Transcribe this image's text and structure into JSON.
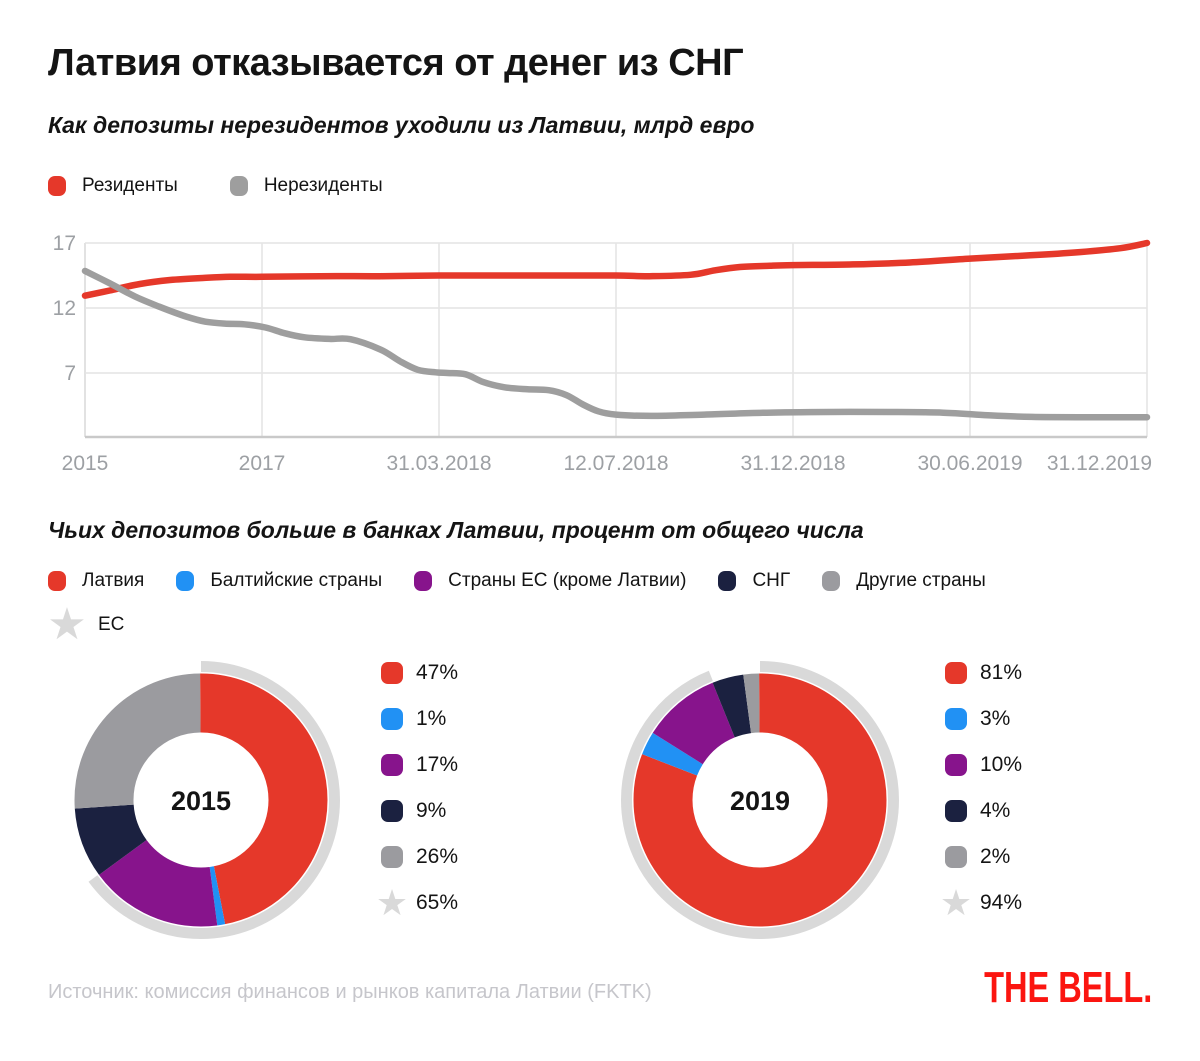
{
  "header": {
    "title": "Латвия отказывается от денег из СНГ",
    "subtitle": "Как депозиты нерезидентов уходили из Латвии, млрд евро"
  },
  "section2": {
    "title": "Чьих депозитов больше в банках Латвии, процент от общего числа",
    "eu_legend_label": "ЕС"
  },
  "footer": {
    "source": "Источник: комиссия финансов и рынков капитала Латвии (FKTK)",
    "logo": "THE BELL."
  },
  "icons": {
    "eu_star": "★"
  },
  "colors": {
    "red": "#e5382a",
    "blue": "#2191f4",
    "purple": "#87148c",
    "navy": "#1b2140",
    "gray": "#9b9b9f",
    "line_gray": "#9e9e9e",
    "eu_light_gray": "#d9d9d9",
    "grid": "#e4e4e4",
    "axis_left": "#d8d8d8",
    "axis_bottom": "#c9c9c9",
    "tick_text": "#9da0a4",
    "source_text": "#c6c6cb",
    "logo_red": "#fb1510",
    "text": "#141414"
  },
  "chart_data": [
    {
      "type": "line",
      "title": "Как депозиты нерезидентов уходили из Латвии, млрд евро",
      "xlabel": "",
      "ylabel": "млрд евро",
      "ylim": [
        2,
        17
      ],
      "yticks": [
        17,
        12,
        7
      ],
      "xticks": [
        "2015",
        "2017",
        "31.03.2018",
        "12.07.2018",
        "31.12.2018",
        "30.06.2019",
        "31.12.2019"
      ],
      "grid": true,
      "legend_position": "top",
      "series": [
        {
          "name": "Резиденты",
          "color": "#e5382a",
          "points": [
            [
              0,
              12.95
            ],
            [
              0.14,
              13.35
            ],
            [
              0.31,
              13.85
            ],
            [
              0.48,
              14.15
            ],
            [
              0.65,
              14.3
            ],
            [
              0.82,
              14.4
            ],
            [
              1,
              14.4
            ],
            [
              1.33,
              14.45
            ],
            [
              1.67,
              14.45
            ],
            [
              2,
              14.5
            ],
            [
              2.35,
              14.5
            ],
            [
              2.68,
              14.5
            ],
            [
              3,
              14.5
            ],
            [
              3.19,
              14.45
            ],
            [
              3.42,
              14.55
            ],
            [
              3.56,
              14.9
            ],
            [
              3.7,
              15.15
            ],
            [
              3.87,
              15.25
            ],
            [
              4,
              15.3
            ],
            [
              4.32,
              15.35
            ],
            [
              4.66,
              15.5
            ],
            [
              5,
              15.8
            ],
            [
              5.34,
              16.05
            ],
            [
              5.62,
              16.3
            ],
            [
              5.85,
              16.6
            ],
            [
              6,
              17
            ]
          ]
        },
        {
          "name": "Нерезиденты",
          "color": "#9e9e9e",
          "points": [
            [
              0,
              14.85
            ],
            [
              0.14,
              13.9
            ],
            [
              0.28,
              12.9
            ],
            [
              0.42,
              12.1
            ],
            [
              0.57,
              11.35
            ],
            [
              0.68,
              10.95
            ],
            [
              0.79,
              10.8
            ],
            [
              0.9,
              10.75
            ],
            [
              1.02,
              10.5
            ],
            [
              1.13,
              10.05
            ],
            [
              1.24,
              9.75
            ],
            [
              1.38,
              9.62
            ],
            [
              1.5,
              9.6
            ],
            [
              1.67,
              8.8
            ],
            [
              1.78,
              7.9
            ],
            [
              1.88,
              7.25
            ],
            [
              1.98,
              7.05
            ],
            [
              2.05,
              7.0
            ],
            [
              2.15,
              6.9
            ],
            [
              2.25,
              6.3
            ],
            [
              2.37,
              5.9
            ],
            [
              2.5,
              5.75
            ],
            [
              2.62,
              5.68
            ],
            [
              2.72,
              5.3
            ],
            [
              2.81,
              4.6
            ],
            [
              2.9,
              4.05
            ],
            [
              3,
              3.8
            ],
            [
              3.2,
              3.7
            ],
            [
              3.5,
              3.8
            ],
            [
              3.85,
              3.95
            ],
            [
              4.2,
              4.0
            ],
            [
              4.55,
              4.0
            ],
            [
              4.85,
              3.95
            ],
            [
              5.1,
              3.75
            ],
            [
              5.35,
              3.62
            ],
            [
              5.7,
              3.6
            ],
            [
              6,
              3.6
            ]
          ]
        }
      ]
    },
    {
      "type": "pie",
      "style": "donut",
      "title": "2015",
      "unit": "%",
      "labels": [
        "Латвия",
        "Балтийские страны",
        "Страны ЕС (кроме Латвии)",
        "СНГ",
        "Другие страны"
      ],
      "values": [
        47,
        1,
        17,
        9,
        26
      ],
      "colors": [
        "#e5382a",
        "#2191f4",
        "#87148c",
        "#1b2140",
        "#9b9b9f"
      ],
      "eu_total": {
        "label": "ЕС",
        "value": 65,
        "color": "#d9d9d9"
      }
    },
    {
      "type": "pie",
      "style": "donut",
      "title": "2019",
      "unit": "%",
      "labels": [
        "Латвия",
        "Балтийские страны",
        "Страны ЕС (кроме Латвии)",
        "СНГ",
        "Другие страны"
      ],
      "values": [
        81,
        3,
        10,
        4,
        2
      ],
      "colors": [
        "#e5382a",
        "#2191f4",
        "#87148c",
        "#1b2140",
        "#9b9b9f"
      ],
      "eu_total": {
        "label": "ЕС",
        "value": 94,
        "color": "#d9d9d9"
      }
    }
  ]
}
